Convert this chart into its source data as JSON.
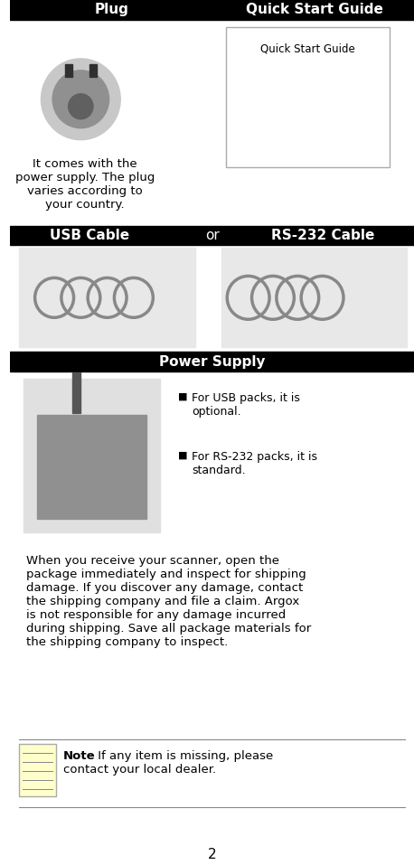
{
  "header_bg": "#000000",
  "header_text_color": "#ffffff",
  "plug_label": "Plug",
  "guide_label": "Quick Start Guide",
  "usb_label": "USB Cable",
  "or_label": "or",
  "rs232_label": "RS-232 Cable",
  "power_supply_label": "Power Supply",
  "plug_description": "It comes with the\npower supply. The plug\nvaries according to\nyour country.",
  "bullet1": "For USB packs, it is\noptional.",
  "bullet2": "For RS-232 packs, it is\nstandard.",
  "main_text": "When you receive your scanner, open the\npackage immediately and inspect for shipping\ndamage. If you discover any damage, contact\nthe shipping company and file a claim. Argox\nis not responsible for any damage incurred\nduring shipping. Save all package materials for\nthe shipping company to inspect.",
  "note_label": "Note",
  "note_text": "If any item is missing, please\ncontact your local dealer.",
  "page_number": "2",
  "qsg_box_text": "Quick Start Guide",
  "bg_color": "#ffffff",
  "note_bg": "#ffffcc"
}
